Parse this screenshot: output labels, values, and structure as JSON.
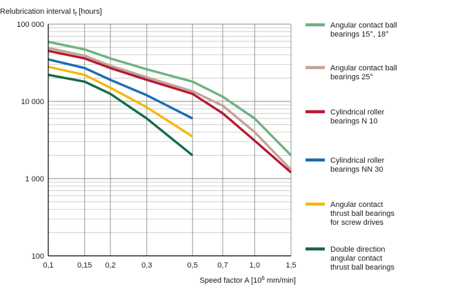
{
  "chart_data": {
    "type": "line",
    "title": "",
    "ylabel": "Relubrication interval",
    "ylabel_symbol": "t",
    "ylabel_subscript": "f",
    "ylabel_unit": "[hours]",
    "xlabel": "Speed factor A [10",
    "xlabel_exponent": "6",
    "xlabel_unit": " mm/min]",
    "x": [
      0.1,
      0.15,
      0.2,
      0.3,
      0.5,
      0.7,
      1.0,
      1.5
    ],
    "x_tick_labels": [
      "0,1",
      "0,15",
      "0,2",
      "0,3",
      "0,5",
      "0,7",
      "1,0",
      "1,5"
    ],
    "y_scale": "log",
    "ylim": [
      100,
      100000
    ],
    "y_tick_values": [
      100,
      1000,
      10000,
      100000
    ],
    "y_tick_labels": [
      "100",
      "1 000",
      "10 000",
      "100 000"
    ],
    "grid": true,
    "legend_position": "right",
    "series": [
      {
        "name": "Angular contact ball bearings 15°, 18°",
        "legend_lines": [
          "Angular contact ball",
          "bearings 15°, 18°"
        ],
        "color": "#6db283",
        "values": [
          59000,
          47000,
          36000,
          26000,
          18000,
          11500,
          6000,
          2000
        ]
      },
      {
        "name": "Angular contact ball bearings 25°",
        "legend_lines": [
          "Angular contact ball",
          "bearings 25°"
        ],
        "color": "#c2a494",
        "values": [
          49000,
          39000,
          29000,
          20500,
          13500,
          8800,
          4000,
          1300
        ]
      },
      {
        "name": "Cylindrical roller bearings N 10",
        "legend_lines": [
          "Cylindrical roller",
          "bearings N 10"
        ],
        "color": "#b51a35",
        "values": [
          45000,
          36000,
          27000,
          19000,
          12500,
          7000,
          3100,
          1200
        ]
      },
      {
        "name": "Cylindrical roller bearings NN 30",
        "legend_lines": [
          "Cylindrical roller",
          "bearings NN 30"
        ],
        "color": "#1a6db3",
        "values": [
          35000,
          27000,
          19000,
          12000,
          6000,
          null,
          null,
          null
        ]
      },
      {
        "name": "Angular contact thrust ball bearings for screw drives",
        "legend_lines": [
          "Angular contact",
          "thrust ball bearings",
          "for screw drives"
        ],
        "color": "#f2b90c",
        "values": [
          28000,
          22000,
          15000,
          8400,
          3500,
          null,
          null,
          null
        ]
      },
      {
        "name": "Double direction angular contact thrust ball bearings",
        "legend_lines": [
          "Double direction",
          "angular contact",
          "thrust ball bearings"
        ],
        "color": "#156b45",
        "values": [
          22000,
          18000,
          12500,
          6000,
          2000,
          null,
          null,
          null
        ]
      }
    ]
  }
}
